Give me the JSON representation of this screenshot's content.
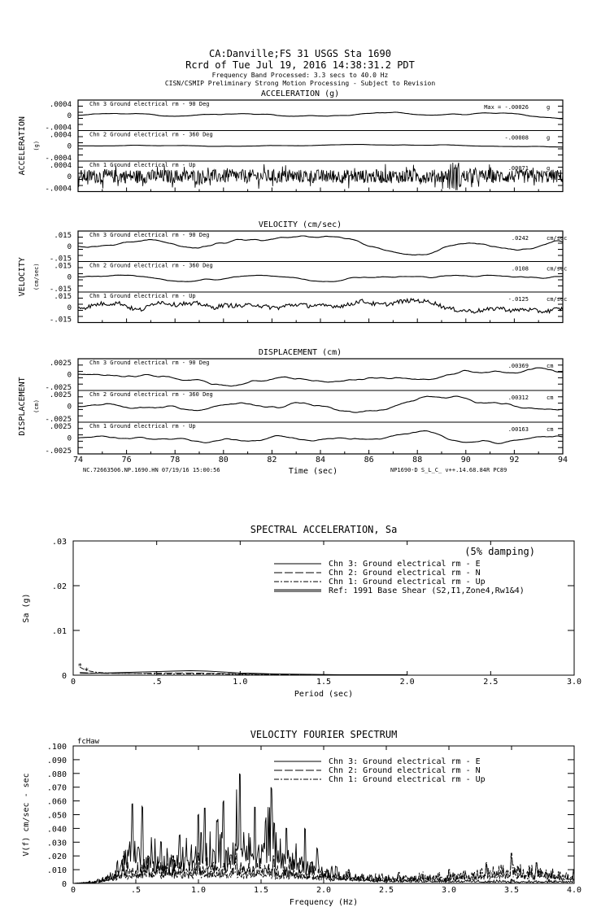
{
  "header": {
    "line1": "CA:Danville;FS 31     USGS Sta 1690",
    "line2": "Rcrd of Tue Jul 19, 2016 14:38:31.2 PDT",
    "line3": "Frequency Band Processed: 3.3 secs to 40.0 Hz",
    "line4": "CISN/CSMIP Preliminary Strong Motion Processing - Subject to Revision"
  },
  "chart_data": [
    {
      "type": "line",
      "title": "ACCELERATION (g)",
      "ylabel": "ACCELERATION",
      "yunit": "(g)",
      "yticks": [
        ".0004",
        "0",
        "-.0004"
      ],
      "xlim": [
        74,
        94
      ],
      "max_prefix": "Max =",
      "series": [
        {
          "name": "Chn 3  Ground electrical rm - 90 Deg",
          "max": "-.00026",
          "unit": "g"
        },
        {
          "name": "Chn 2  Ground electrical rm - 360 Deg",
          "max": "-.00008",
          "unit": "g"
        },
        {
          "name": "Chn 1  Ground electrical rm - Up",
          "max": ".00071",
          "unit": "g"
        }
      ]
    },
    {
      "type": "line",
      "title": "VELOCITY (cm/sec)",
      "ylabel": "VELOCITY",
      "yunit": "(cm/sec)",
      "yticks": [
        ".015",
        "0",
        "-.015"
      ],
      "xlim": [
        74,
        94
      ],
      "series": [
        {
          "name": "Chn 3  Ground electrical rm - 90 Deg",
          "max": ".0242",
          "unit": "cm/sec"
        },
        {
          "name": "Chn 2  Ground electrical rm - 360 Deg",
          "max": ".0108",
          "unit": "cm/sec"
        },
        {
          "name": "Chn 1  Ground electrical rm - Up",
          "max": "-.0125",
          "unit": "cm/sec"
        }
      ]
    },
    {
      "type": "line",
      "title": "DISPLACEMENT (cm)",
      "ylabel": "DISPLACEMENT",
      "yunit": "(cm)",
      "yticks": [
        ".0025",
        "0",
        "-.0025"
      ],
      "xlim": [
        74,
        94
      ],
      "xlabel": "Time (sec)",
      "xticks": [
        "74",
        "76",
        "78",
        "80",
        "82",
        "84",
        "86",
        "88",
        "90",
        "92",
        "94"
      ],
      "series": [
        {
          "name": "Chn 3  Ground electrical rm - 90 Deg",
          "max": ".00369",
          "unit": "cm"
        },
        {
          "name": "Chn 2  Ground electrical rm - 360 Deg",
          "max": ".00312",
          "unit": "cm"
        },
        {
          "name": "Chn 1  Ground electrical rm - Up",
          "max": ".00163",
          "unit": "cm"
        }
      ],
      "footer_left": "NC.72663506.NP.1690.HN 07/19/16 15:00:56",
      "footer_right": "NP1690-D  S_L_C_  v++.14.68.84R PC89"
    },
    {
      "type": "line",
      "title": "SPECTRAL ACCELERATION, Sa",
      "xlabel": "Period (sec)",
      "ylabel": "Sa (g)",
      "xlim": [
        0,
        3.0
      ],
      "ylim": [
        0,
        0.03
      ],
      "xticks": [
        "0",
        ".5",
        "1.0",
        "1.5",
        "2.0",
        "2.5",
        "3.0"
      ],
      "yticks": [
        "0",
        ".01",
        ".02",
        ".03"
      ],
      "annotation": "(5% damping)",
      "legend_placement": "top-right",
      "series": [
        {
          "name": "Chn 3: Ground electrical rm - E",
          "style": "solid",
          "x": [
            0.04,
            0.1,
            0.2,
            0.3,
            0.4,
            0.5,
            0.6,
            0.7,
            0.8,
            0.9,
            1.0,
            1.1,
            1.2,
            1.4,
            1.6,
            1.8,
            2.0
          ],
          "y": [
            0.0004,
            0.0004,
            0.0005,
            0.0006,
            0.0007,
            0.0008,
            0.0009,
            0.001,
            0.0009,
            0.0007,
            0.0005,
            0.0004,
            0.0003,
            0.0002,
            0.0001,
            0.0001,
            0.0001
          ]
        },
        {
          "name": "Chn 2: Ground electrical rm - N",
          "style": "dashed",
          "x": [
            0.04,
            0.1,
            0.2,
            0.3,
            0.4,
            0.5,
            0.6,
            0.7,
            0.8,
            0.9,
            1.0,
            1.2,
            1.4,
            1.6,
            1.8,
            2.0
          ],
          "y": [
            0.0006,
            0.0005,
            0.0004,
            0.0004,
            0.0004,
            0.0005,
            0.0005,
            0.0005,
            0.0004,
            0.0004,
            0.0003,
            0.0002,
            0.0001,
            0.0001,
            0.0001,
            0.0001
          ]
        },
        {
          "name": "Chn 1: Ground electrical rm - Up",
          "style": "dashdot",
          "x": [
            0.04,
            0.07,
            0.1,
            0.15,
            0.2,
            0.3,
            0.4,
            0.5,
            0.6,
            0.8,
            1.0,
            1.2,
            1.4,
            1.6,
            1.8,
            2.0
          ],
          "y": [
            0.0018,
            0.0012,
            0.0009,
            0.0006,
            0.0005,
            0.0004,
            0.0004,
            0.0003,
            0.0003,
            0.0003,
            0.0002,
            0.0002,
            0.0001,
            0.0001,
            0.0001,
            0.0001
          ]
        },
        {
          "name": "Ref: 1991 Base Shear (S2,I1,Zone4,Rw1&4)",
          "style": "double",
          "x": [],
          "y": []
        }
      ]
    },
    {
      "type": "line",
      "title": "VELOCITY FOURIER SPECTRUM",
      "xlabel": "Frequency (Hz)",
      "ylabel": "V(f)   cm/sec - sec",
      "corner_label": "fcHaw",
      "xlim": [
        0,
        4.0
      ],
      "ylim": [
        0,
        0.1
      ],
      "xticks": [
        "0",
        ".5",
        "1.0",
        "1.5",
        "2.0",
        "2.5",
        "3.0",
        "3.5",
        "4.0"
      ],
      "yticks": [
        "0",
        ".010",
        ".020",
        ".030",
        ".040",
        ".050",
        ".060",
        ".070",
        ".080",
        ".090",
        ".100"
      ],
      "legend_placement": "top-right",
      "series": [
        {
          "name": "Chn 3: Ground electrical rm - E",
          "style": "solid",
          "peaks_x": [
            0.2,
            0.35,
            0.47,
            0.55,
            0.7,
            0.85,
            1.0,
            1.05,
            1.15,
            1.2,
            1.33,
            1.45,
            1.58,
            1.7,
            1.85,
            1.95,
            2.1,
            2.5,
            3.0,
            3.5,
            4.0
          ],
          "peaks_y": [
            0.003,
            0.015,
            0.058,
            0.056,
            0.03,
            0.035,
            0.05,
            0.055,
            0.045,
            0.06,
            0.08,
            0.055,
            0.07,
            0.04,
            0.04,
            0.025,
            0.012,
            0.005,
            0.004,
            0.003,
            0.003
          ]
        },
        {
          "name": "Chn 2: Ground electrical rm - N",
          "style": "dashed",
          "peaks_x": [
            0.2,
            0.4,
            0.6,
            0.8,
            1.0,
            1.3,
            1.6,
            1.9,
            2.2,
            2.6,
            3.0,
            3.3,
            3.5,
            3.7,
            4.0
          ],
          "peaks_y": [
            0.003,
            0.02,
            0.02,
            0.02,
            0.022,
            0.025,
            0.02,
            0.015,
            0.01,
            0.008,
            0.01,
            0.015,
            0.022,
            0.015,
            0.01
          ]
        },
        {
          "name": "Chn 1: Ground electrical rm - Up",
          "style": "dashdot",
          "peaks_x": [
            0.2,
            0.4,
            0.6,
            0.8,
            1.0,
            1.3,
            1.6,
            1.9,
            2.2,
            2.6,
            3.0,
            3.3,
            3.5,
            3.7,
            4.0
          ],
          "peaks_y": [
            0.002,
            0.015,
            0.018,
            0.02,
            0.02,
            0.02,
            0.018,
            0.012,
            0.008,
            0.008,
            0.01,
            0.014,
            0.02,
            0.015,
            0.01
          ]
        }
      ]
    }
  ]
}
